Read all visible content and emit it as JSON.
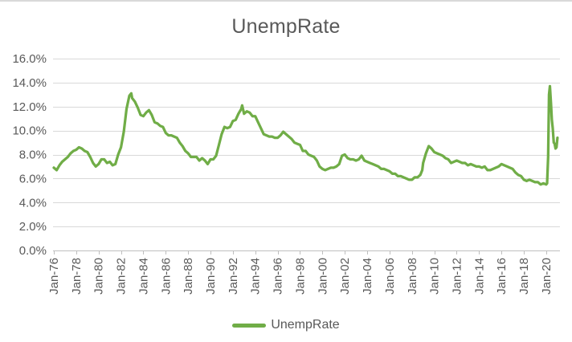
{
  "chart": {
    "title": "UnempRate",
    "legend": {
      "label": "UnempRate"
    },
    "colors": {
      "line": "#70AD47",
      "grid": "#D9D9D9",
      "axis": "#BFBFBF",
      "text": "#595959",
      "top_border": "#D9D9D9"
    }
  },
  "chart_data": {
    "type": "line",
    "title": "UnempRate",
    "series_name": "UnempRate",
    "legend_position": "bottom",
    "grid": "horizontal",
    "y_format": "percent",
    "ylim": [
      0,
      16
    ],
    "y_tick_values": [
      0,
      2,
      4,
      6,
      8,
      10,
      12,
      14,
      16
    ],
    "y_tick_labels": [
      "0.0%",
      "2.0%",
      "4.0%",
      "6.0%",
      "8.0%",
      "10.0%",
      "12.0%",
      "14.0%",
      "16.0%"
    ],
    "x_tick_years": [
      1976,
      1978,
      1980,
      1982,
      1984,
      1986,
      1988,
      1990,
      1992,
      1994,
      1996,
      1998,
      2000,
      2002,
      2004,
      2006,
      2008,
      2010,
      2012,
      2014,
      2016,
      2018,
      2020
    ],
    "x_tick_labels": [
      "Jan-76",
      "Jan-78",
      "Jan-80",
      "Jan-82",
      "Jan-84",
      "Jan-86",
      "Jan-88",
      "Jan-90",
      "Jan-92",
      "Jan-94",
      "Jan-96",
      "Jan-98",
      "Jan-00",
      "Jan-02",
      "Jan-04",
      "Jan-06",
      "Jan-08",
      "Jan-10",
      "Jan-12",
      "Jan-14",
      "Jan-16",
      "Jan-18",
      "Jan-20"
    ],
    "points": [
      [
        1976.0,
        6.9
      ],
      [
        1976.25,
        6.7
      ],
      [
        1976.5,
        7.1
      ],
      [
        1976.75,
        7.4
      ],
      [
        1977.0,
        7.6
      ],
      [
        1977.25,
        7.8
      ],
      [
        1977.5,
        8.1
      ],
      [
        1977.75,
        8.3
      ],
      [
        1978.0,
        8.4
      ],
      [
        1978.25,
        8.6
      ],
      [
        1978.5,
        8.5
      ],
      [
        1978.75,
        8.3
      ],
      [
        1979.0,
        8.2
      ],
      [
        1979.25,
        7.8
      ],
      [
        1979.5,
        7.3
      ],
      [
        1979.75,
        7.0
      ],
      [
        1980.0,
        7.2
      ],
      [
        1980.25,
        7.6
      ],
      [
        1980.5,
        7.6
      ],
      [
        1980.75,
        7.3
      ],
      [
        1981.0,
        7.4
      ],
      [
        1981.25,
        7.1
      ],
      [
        1981.5,
        7.2
      ],
      [
        1981.75,
        8.0
      ],
      [
        1982.0,
        8.6
      ],
      [
        1982.25,
        9.9
      ],
      [
        1982.5,
        11.8
      ],
      [
        1982.75,
        12.9
      ],
      [
        1982.92,
        13.1
      ],
      [
        1983.0,
        12.7
      ],
      [
        1983.25,
        12.4
      ],
      [
        1983.5,
        11.9
      ],
      [
        1983.75,
        11.3
      ],
      [
        1984.0,
        11.2
      ],
      [
        1984.25,
        11.5
      ],
      [
        1984.5,
        11.7
      ],
      [
        1984.75,
        11.3
      ],
      [
        1985.0,
        10.7
      ],
      [
        1985.25,
        10.6
      ],
      [
        1985.5,
        10.4
      ],
      [
        1985.75,
        10.3
      ],
      [
        1986.0,
        9.8
      ],
      [
        1986.25,
        9.6
      ],
      [
        1986.5,
        9.6
      ],
      [
        1986.75,
        9.5
      ],
      [
        1987.0,
        9.4
      ],
      [
        1987.25,
        9.0
      ],
      [
        1987.5,
        8.7
      ],
      [
        1987.75,
        8.3
      ],
      [
        1988.0,
        8.1
      ],
      [
        1988.25,
        7.8
      ],
      [
        1988.5,
        7.8
      ],
      [
        1988.75,
        7.8
      ],
      [
        1989.0,
        7.5
      ],
      [
        1989.25,
        7.7
      ],
      [
        1989.5,
        7.5
      ],
      [
        1989.75,
        7.2
      ],
      [
        1990.0,
        7.6
      ],
      [
        1990.25,
        7.6
      ],
      [
        1990.5,
        7.9
      ],
      [
        1990.75,
        8.8
      ],
      [
        1991.0,
        9.7
      ],
      [
        1991.25,
        10.3
      ],
      [
        1991.5,
        10.2
      ],
      [
        1991.75,
        10.3
      ],
      [
        1992.0,
        10.8
      ],
      [
        1992.25,
        10.9
      ],
      [
        1992.5,
        11.4
      ],
      [
        1992.75,
        11.8
      ],
      [
        1992.83,
        12.1
      ],
      [
        1993.0,
        11.4
      ],
      [
        1993.25,
        11.6
      ],
      [
        1993.5,
        11.5
      ],
      [
        1993.75,
        11.2
      ],
      [
        1994.0,
        11.2
      ],
      [
        1994.25,
        10.7
      ],
      [
        1994.5,
        10.2
      ],
      [
        1994.75,
        9.7
      ],
      [
        1995.0,
        9.6
      ],
      [
        1995.25,
        9.5
      ],
      [
        1995.5,
        9.5
      ],
      [
        1995.75,
        9.4
      ],
      [
        1996.0,
        9.4
      ],
      [
        1996.25,
        9.6
      ],
      [
        1996.5,
        9.9
      ],
      [
        1996.75,
        9.7
      ],
      [
        1997.0,
        9.5
      ],
      [
        1997.25,
        9.3
      ],
      [
        1997.5,
        9.0
      ],
      [
        1997.75,
        8.9
      ],
      [
        1998.0,
        8.8
      ],
      [
        1998.25,
        8.3
      ],
      [
        1998.5,
        8.3
      ],
      [
        1998.75,
        8.0
      ],
      [
        1999.0,
        7.9
      ],
      [
        1999.25,
        7.8
      ],
      [
        1999.5,
        7.5
      ],
      [
        1999.75,
        7.0
      ],
      [
        2000.0,
        6.8
      ],
      [
        2000.25,
        6.7
      ],
      [
        2000.5,
        6.8
      ],
      [
        2000.75,
        6.9
      ],
      [
        2001.0,
        6.9
      ],
      [
        2001.25,
        7.0
      ],
      [
        2001.5,
        7.2
      ],
      [
        2001.75,
        7.9
      ],
      [
        2002.0,
        8.0
      ],
      [
        2002.25,
        7.7
      ],
      [
        2002.5,
        7.6
      ],
      [
        2002.75,
        7.6
      ],
      [
        2003.0,
        7.5
      ],
      [
        2003.25,
        7.6
      ],
      [
        2003.5,
        7.9
      ],
      [
        2003.75,
        7.5
      ],
      [
        2004.0,
        7.4
      ],
      [
        2004.25,
        7.3
      ],
      [
        2004.5,
        7.2
      ],
      [
        2004.75,
        7.1
      ],
      [
        2005.0,
        7.0
      ],
      [
        2005.25,
        6.8
      ],
      [
        2005.5,
        6.8
      ],
      [
        2005.75,
        6.7
      ],
      [
        2006.0,
        6.6
      ],
      [
        2006.25,
        6.4
      ],
      [
        2006.5,
        6.4
      ],
      [
        2006.75,
        6.2
      ],
      [
        2007.0,
        6.2
      ],
      [
        2007.25,
        6.1
      ],
      [
        2007.5,
        6.0
      ],
      [
        2007.75,
        5.9
      ],
      [
        2008.0,
        5.9
      ],
      [
        2008.25,
        6.1
      ],
      [
        2008.5,
        6.1
      ],
      [
        2008.75,
        6.3
      ],
      [
        2008.92,
        6.7
      ],
      [
        2009.0,
        7.3
      ],
      [
        2009.25,
        8.1
      ],
      [
        2009.5,
        8.7
      ],
      [
        2009.75,
        8.5
      ],
      [
        2010.0,
        8.2
      ],
      [
        2010.25,
        8.1
      ],
      [
        2010.5,
        8.0
      ],
      [
        2010.75,
        7.9
      ],
      [
        2011.0,
        7.7
      ],
      [
        2011.25,
        7.6
      ],
      [
        2011.5,
        7.3
      ],
      [
        2011.75,
        7.4
      ],
      [
        2012.0,
        7.5
      ],
      [
        2012.25,
        7.4
      ],
      [
        2012.5,
        7.3
      ],
      [
        2012.75,
        7.3
      ],
      [
        2013.0,
        7.1
      ],
      [
        2013.25,
        7.2
      ],
      [
        2013.5,
        7.1
      ],
      [
        2013.75,
        7.0
      ],
      [
        2014.0,
        7.0
      ],
      [
        2014.25,
        6.9
      ],
      [
        2014.5,
        7.0
      ],
      [
        2014.75,
        6.7
      ],
      [
        2015.0,
        6.7
      ],
      [
        2015.25,
        6.8
      ],
      [
        2015.5,
        6.9
      ],
      [
        2015.75,
        7.0
      ],
      [
        2016.0,
        7.2
      ],
      [
        2016.25,
        7.1
      ],
      [
        2016.5,
        7.0
      ],
      [
        2016.75,
        6.9
      ],
      [
        2017.0,
        6.8
      ],
      [
        2017.25,
        6.5
      ],
      [
        2017.5,
        6.3
      ],
      [
        2017.75,
        6.2
      ],
      [
        2018.0,
        5.9
      ],
      [
        2018.25,
        5.8
      ],
      [
        2018.5,
        5.9
      ],
      [
        2018.75,
        5.8
      ],
      [
        2019.0,
        5.7
      ],
      [
        2019.25,
        5.7
      ],
      [
        2019.5,
        5.5
      ],
      [
        2019.75,
        5.6
      ],
      [
        2020.0,
        5.5
      ],
      [
        2020.08,
        5.6
      ],
      [
        2020.17,
        7.8
      ],
      [
        2020.25,
        13.0
      ],
      [
        2020.33,
        13.7
      ],
      [
        2020.42,
        12.3
      ],
      [
        2020.5,
        10.9
      ],
      [
        2020.58,
        10.2
      ],
      [
        2020.67,
        9.0
      ],
      [
        2020.75,
        8.9
      ],
      [
        2020.83,
        8.5
      ],
      [
        2020.92,
        8.6
      ],
      [
        2021.0,
        9.4
      ]
    ]
  }
}
